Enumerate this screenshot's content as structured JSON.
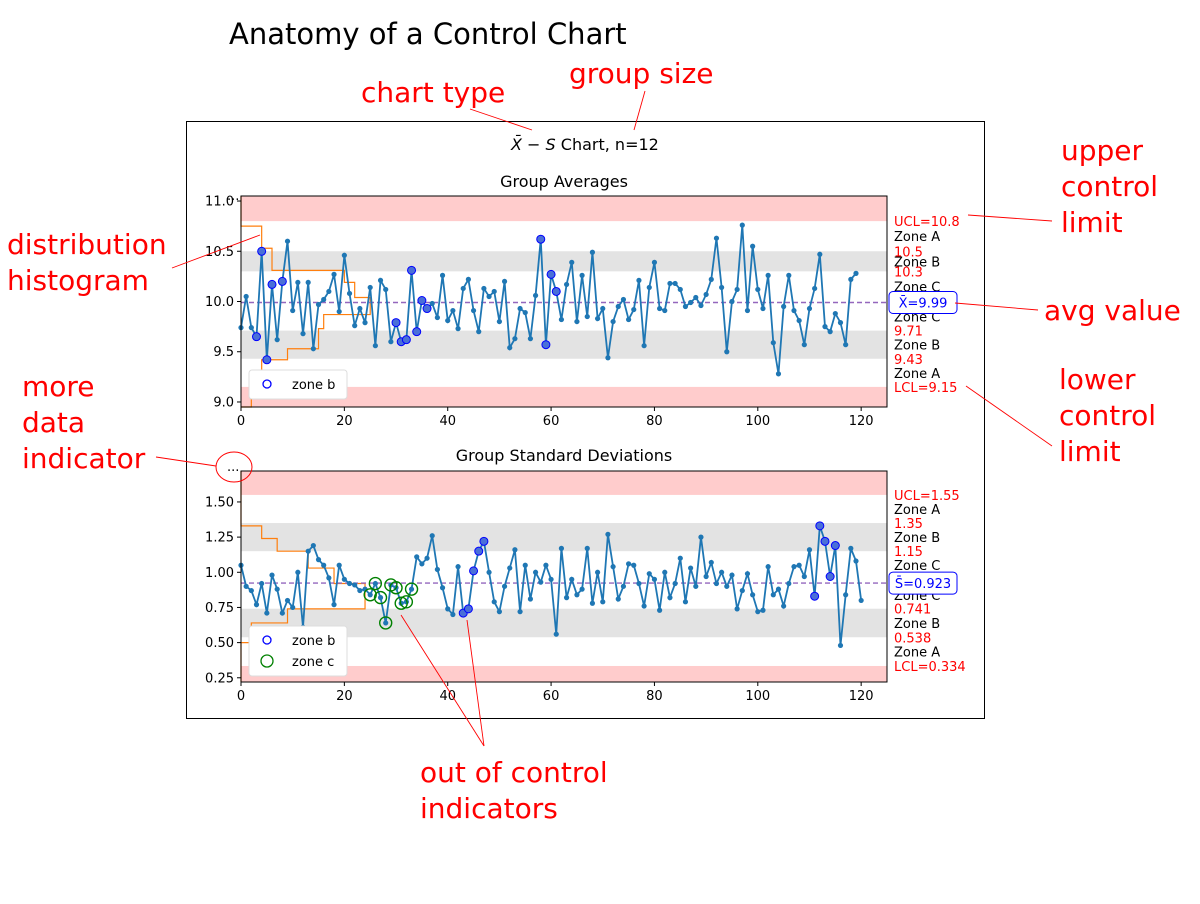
{
  "page_title": "Anatomy of a Control Chart",
  "figure": {
    "chart_title_prefix": "X̄ − S",
    "chart_title_suffix": " Chart, n=12",
    "more_data_glyph": "..."
  },
  "annotations": {
    "chart_type": "chart type",
    "group_size": "group size",
    "distribution_histogram": [
      "distribution",
      "histogram"
    ],
    "more_data_indicator": [
      "more",
      "data",
      "indicator"
    ],
    "upper_control_limit": [
      "upper",
      "control",
      "limit"
    ],
    "avg_value": "avg value",
    "lower_control_limit": [
      "lower",
      "control",
      "limit"
    ],
    "out_of_control_indicators": [
      "out of control",
      "indicators"
    ],
    "color": "#ff0000"
  },
  "colors": {
    "series": "#1f77b4",
    "histogram": "#ff7f0e",
    "mean_line": "#9467bd",
    "zone_a_band": "#ffcccc",
    "zone_b_band": "#e3e3e3",
    "zone_b_marker": "#0000ff",
    "zone_c_marker": "#008000",
    "limit_text": "#ff0000"
  },
  "chart_data": [
    {
      "type": "line",
      "title": "Group Averages",
      "xlim": [
        0,
        125
      ],
      "ylim": [
        8.95,
        11.05
      ],
      "xticks": [
        0,
        20,
        40,
        60,
        80,
        100,
        120
      ],
      "yticks": [
        9.0,
        9.5,
        10.0,
        10.5,
        11.0
      ],
      "ytick_labels": [
        "9.0",
        "9.5",
        "10.0",
        "10.5",
        "11.0"
      ],
      "center": 9.99,
      "center_label": "X̄=9.99",
      "ucl": 10.8,
      "lcl": 9.15,
      "zone_bounds": [
        9.15,
        9.43,
        9.71,
        9.99,
        10.3,
        10.5,
        10.8
      ],
      "side_labels": [
        {
          "text": "UCL=10.8",
          "value": 10.8,
          "kind": "limit"
        },
        {
          "text": "Zone A",
          "value": 10.65,
          "kind": "zone"
        },
        {
          "text": "10.5",
          "value": 10.5,
          "kind": "limit"
        },
        {
          "text": "Zone B",
          "value": 10.4,
          "kind": "zone"
        },
        {
          "text": "10.3",
          "value": 10.3,
          "kind": "limit"
        },
        {
          "text": "Zone C",
          "value": 10.15,
          "kind": "zone"
        },
        {
          "text": "Zone C",
          "value": 9.85,
          "kind": "zone"
        },
        {
          "text": "9.71",
          "value": 9.71,
          "kind": "limit"
        },
        {
          "text": "Zone B",
          "value": 9.57,
          "kind": "zone"
        },
        {
          "text": "9.43",
          "value": 9.43,
          "kind": "limit"
        },
        {
          "text": "Zone A",
          "value": 9.29,
          "kind": "zone"
        },
        {
          "text": "LCL=9.15",
          "value": 9.15,
          "kind": "limit"
        }
      ],
      "series": [
        {
          "values": [
            9.74,
            10.05,
            9.74,
            9.65,
            10.5,
            9.42,
            10.17,
            9.62,
            10.2,
            10.6,
            9.91,
            10.19,
            9.68,
            10.19,
            9.53,
            9.97,
            10.02,
            10.1,
            10.27,
            9.9,
            10.46,
            10.08,
            9.76,
            9.93,
            9.79,
            10.14,
            9.56,
            10.21,
            10.12,
            9.6,
            9.79,
            9.6,
            9.62,
            10.31,
            9.7,
            10.01,
            9.93,
            9.98,
            9.84,
            10.26,
            9.81,
            9.91,
            9.73,
            10.13,
            10.22,
            9.91,
            9.7,
            10.13,
            10.05,
            10.1,
            9.8,
            10.2,
            9.54,
            9.63,
            9.93,
            9.89,
            9.63,
            10.06,
            10.62,
            9.57,
            10.27,
            10.1,
            9.82,
            10.17,
            10.39,
            9.8,
            10.26,
            9.85,
            10.49,
            9.83,
            9.93,
            9.44,
            9.8,
            9.95,
            10.02,
            9.82,
            9.92,
            10.21,
            9.56,
            10.14,
            10.39,
            9.93,
            9.91,
            10.18,
            10.18,
            10.12,
            9.95,
            9.99,
            10.04,
            9.96,
            10.07,
            10.22,
            10.63,
            10.14,
            9.5,
            10.0,
            10.12,
            10.76,
            9.91,
            10.55,
            10.12,
            9.93,
            10.26,
            9.59,
            9.28,
            9.95,
            10.26,
            9.91,
            9.81,
            9.57,
            9.93,
            10.13,
            10.47,
            9.75,
            9.7,
            9.88,
            9.79,
            9.57,
            10.22,
            10.28
          ]
        }
      ],
      "flagged": {
        "zone_b": [
          3,
          4,
          5,
          6,
          8,
          30,
          31,
          32,
          33,
          34,
          35,
          36,
          58,
          59,
          60,
          61
        ]
      },
      "histogram_steps": [
        {
          "y0": 8.95,
          "y1": 9.28,
          "x": 2
        },
        {
          "y0": 9.28,
          "y1": 9.42,
          "x": 4
        },
        {
          "y0": 9.42,
          "y1": 9.53,
          "x": 9
        },
        {
          "y0": 9.53,
          "y1": 9.62,
          "x": 15
        },
        {
          "y0": 9.62,
          "y1": 9.73,
          "x": 15
        },
        {
          "y0": 9.73,
          "y1": 9.87,
          "x": 16
        },
        {
          "y0": 9.87,
          "y1": 10.04,
          "x": 25
        },
        {
          "y0": 10.04,
          "y1": 10.19,
          "x": 22
        },
        {
          "y0": 10.19,
          "y1": 10.31,
          "x": 20
        },
        {
          "y0": 10.31,
          "y1": 10.53,
          "x": 6
        },
        {
          "y0": 10.53,
          "y1": 10.75,
          "x": 4
        },
        {
          "y0": 10.75,
          "y1": 11.05,
          "x": 0
        }
      ],
      "legend": [
        {
          "label": "zone b",
          "marker": "zone_b"
        }
      ]
    },
    {
      "type": "line",
      "title": "Group Standard Deviations",
      "xlim": [
        0,
        125
      ],
      "ylim": [
        0.22,
        1.72
      ],
      "xticks": [
        0,
        20,
        40,
        60,
        80,
        100,
        120
      ],
      "yticks": [
        0.25,
        0.5,
        0.75,
        1.0,
        1.25,
        1.5
      ],
      "ytick_labels": [
        "0.25",
        "0.50",
        "0.75",
        "1.00",
        "1.25",
        "1.50"
      ],
      "center": 0.923,
      "center_label": "S̄=0.923",
      "ucl": 1.55,
      "lcl": 0.334,
      "zone_bounds": [
        0.334,
        0.538,
        0.741,
        0.923,
        1.15,
        1.35,
        1.55
      ],
      "side_labels": [
        {
          "text": "UCL=1.55",
          "value": 1.55,
          "kind": "limit"
        },
        {
          "text": "Zone A",
          "value": 1.45,
          "kind": "zone"
        },
        {
          "text": "1.35",
          "value": 1.35,
          "kind": "limit"
        },
        {
          "text": "Zone B",
          "value": 1.25,
          "kind": "zone"
        },
        {
          "text": "1.15",
          "value": 1.15,
          "kind": "limit"
        },
        {
          "text": "Zone C",
          "value": 1.05,
          "kind": "zone"
        },
        {
          "text": "Zone C",
          "value": 0.84,
          "kind": "zone"
        },
        {
          "text": "0.741",
          "value": 0.741,
          "kind": "limit"
        },
        {
          "text": "Zone B",
          "value": 0.64,
          "kind": "zone"
        },
        {
          "text": "0.538",
          "value": 0.538,
          "kind": "limit"
        },
        {
          "text": "Zone A",
          "value": 0.436,
          "kind": "zone"
        },
        {
          "text": "LCL=0.334",
          "value": 0.334,
          "kind": "limit"
        }
      ],
      "series": [
        {
          "values": [
            1.05,
            0.9,
            0.87,
            0.77,
            0.92,
            0.71,
            0.98,
            0.88,
            0.71,
            0.8,
            0.75,
            1.0,
            0.61,
            1.15,
            1.19,
            1.09,
            1.05,
            0.96,
            0.77,
            1.05,
            0.95,
            0.92,
            0.91,
            0.87,
            0.88,
            0.84,
            0.92,
            0.82,
            0.64,
            0.91,
            0.89,
            0.78,
            0.79,
            0.88,
            1.11,
            1.06,
            1.1,
            1.26,
            1.02,
            0.89,
            0.74,
            0.7,
            1.04,
            0.71,
            0.74,
            1.01,
            1.15,
            1.22,
            1.0,
            0.79,
            0.72,
            0.9,
            1.03,
            1.16,
            0.72,
            1.05,
            0.81,
            1.0,
            0.93,
            1.05,
            0.95,
            0.56,
            1.17,
            0.82,
            0.95,
            0.84,
            0.88,
            1.17,
            0.78,
            1.0,
            0.79,
            1.27,
            1.04,
            0.81,
            0.9,
            1.06,
            1.05,
            0.92,
            0.76,
            0.99,
            0.95,
            0.73,
            1.0,
            0.82,
            0.92,
            1.1,
            0.79,
            1.03,
            0.9,
            1.25,
            0.97,
            1.07,
            0.92,
            1.0,
            0.9,
            0.98,
            0.74,
            0.87,
            0.99,
            0.84,
            0.72,
            0.73,
            1.04,
            0.84,
            0.88,
            0.76,
            0.92,
            1.04,
            1.05,
            0.97,
            1.16,
            0.83,
            1.33,
            1.22,
            0.97,
            1.19,
            0.48,
            0.84,
            1.17,
            1.08,
            0.8
          ]
        }
      ],
      "flagged": {
        "zone_b": [
          43,
          44,
          45,
          46,
          47,
          111,
          112,
          113,
          114,
          115
        ],
        "zone_c": [
          25,
          26,
          27,
          28,
          29,
          30,
          31,
          32,
          33
        ]
      },
      "histogram_steps": [
        {
          "y0": 0.22,
          "y1": 0.5,
          "x": 0
        },
        {
          "y0": 0.5,
          "y1": 0.64,
          "x": 2
        },
        {
          "y0": 0.64,
          "y1": 0.74,
          "x": 9
        },
        {
          "y0": 0.74,
          "y1": 0.92,
          "x": 24
        },
        {
          "y0": 0.92,
          "y1": 1.03,
          "x": 18
        },
        {
          "y0": 1.03,
          "y1": 1.15,
          "x": 13
        },
        {
          "y0": 1.15,
          "y1": 1.24,
          "x": 7
        },
        {
          "y0": 1.24,
          "y1": 1.33,
          "x": 4
        },
        {
          "y0": 1.33,
          "y1": 1.72,
          "x": 0
        }
      ],
      "legend": [
        {
          "label": "zone b",
          "marker": "zone_b"
        },
        {
          "label": "zone c",
          "marker": "zone_c"
        }
      ]
    }
  ]
}
